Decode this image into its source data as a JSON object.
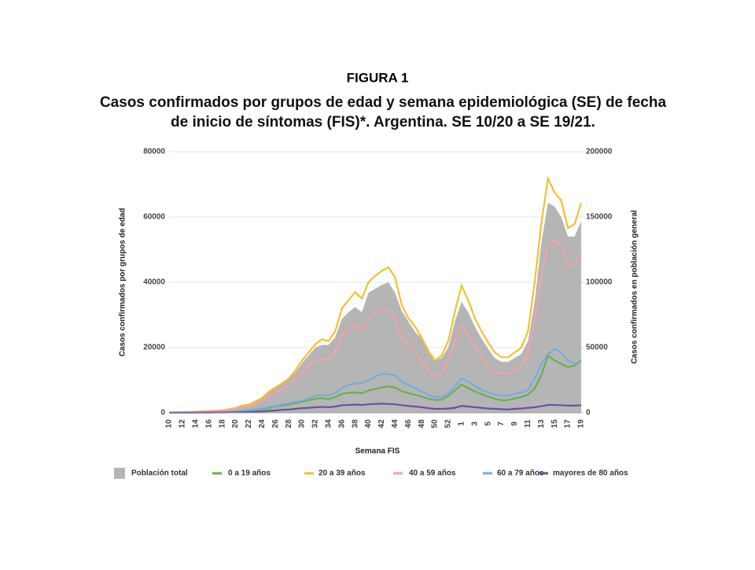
{
  "figure_label": "FIGURA 1",
  "chart_data": {
    "type": "area-line",
    "title": "Casos confirmados por grupos de edad y semana epidemiológica (SE) de fecha de inicio de síntomas (FIS)*. Argentina. SE 10/20 a SE 19/21.",
    "x_label": "Semana FIS",
    "y_label": "Casos confirmados por grupos de edad",
    "y2_label": "Casos confirmados en población general",
    "categories": [
      "10",
      null,
      "12",
      null,
      "14",
      null,
      "16",
      null,
      "18",
      null,
      "20",
      null,
      "22",
      null,
      "24",
      null,
      "26",
      null,
      "28",
      null,
      "30",
      null,
      "32",
      null,
      "34",
      null,
      "36",
      null,
      "38",
      null,
      "40",
      null,
      "42",
      null,
      "44",
      null,
      "46",
      null,
      "48",
      null,
      "50",
      null,
      "52",
      null,
      "1",
      null,
      "3",
      null,
      "5",
      null,
      "7",
      null,
      "9",
      null,
      "11",
      null,
      "13",
      null,
      "15",
      null,
      "17",
      null,
      "19"
    ],
    "ylim": [
      0,
      80000
    ],
    "yticks": [
      0,
      20000,
      40000,
      60000,
      80000
    ],
    "y2lim": [
      0,
      200000
    ],
    "y2ticks": [
      0,
      50000,
      100000,
      150000,
      200000
    ],
    "grid": true,
    "series": [
      {
        "name": "Población total",
        "color": "#b5b5b5",
        "axis": "y2",
        "kind": "area",
        "values": [
          200,
          300,
          400,
          600,
          900,
          1200,
          1500,
          1800,
          2300,
          3000,
          4000,
          5500,
          6500,
          8500,
          11000,
          16000,
          19000,
          22000,
          26000,
          31000,
          38000,
          44000,
          50000,
          52000,
          52000,
          58000,
          72000,
          77000,
          81000,
          77000,
          92000,
          95000,
          98000,
          100000,
          92000,
          78000,
          70000,
          62000,
          57000,
          46000,
          40000,
          42000,
          50000,
          70000,
          85000,
          77000,
          66000,
          57000,
          49000,
          42000,
          39000,
          39000,
          42000,
          45000,
          55000,
          85000,
          130000,
          161000,
          158000,
          150000,
          135000,
          135000,
          147000
        ]
      },
      {
        "name": "0 a 19 años",
        "color": "#6ab04c",
        "values": [
          20,
          30,
          40,
          50,
          70,
          90,
          110,
          130,
          160,
          200,
          300,
          450,
          600,
          800,
          1100,
          1500,
          1900,
          2200,
          2500,
          2900,
          3400,
          3800,
          4300,
          4500,
          4200,
          4800,
          5800,
          6100,
          6200,
          6000,
          6800,
          7300,
          7800,
          8100,
          7700,
          6600,
          6000,
          5500,
          5000,
          4300,
          3900,
          4000,
          5200,
          6800,
          8600,
          7600,
          6500,
          5700,
          5000,
          4300,
          3800,
          3900,
          4400,
          4800,
          5500,
          7500,
          11500,
          17500,
          16000,
          15000,
          14000,
          14500,
          16000
        ]
      },
      {
        "name": "20 a 39 años",
        "color": "#f2c12e",
        "values": [
          100,
          150,
          200,
          250,
          350,
          450,
          550,
          650,
          800,
          1100,
          1500,
          2200,
          2500,
          3500,
          4500,
          6500,
          7800,
          9000,
          10500,
          13000,
          16000,
          18500,
          21000,
          22500,
          22000,
          25000,
          32000,
          34500,
          37000,
          35000,
          40000,
          42000,
          43500,
          44600,
          41500,
          33000,
          29000,
          26500,
          23000,
          19000,
          16000,
          17500,
          22000,
          31000,
          39000,
          34500,
          29000,
          25000,
          21500,
          18500,
          17000,
          17000,
          18500,
          20000,
          25000,
          40000,
          58000,
          71800,
          67500,
          65000,
          56600,
          57800,
          64300
        ]
      },
      {
        "name": "40 a 59 años",
        "color": "#f4a3a8",
        "values": [
          80,
          120,
          160,
          200,
          280,
          350,
          450,
          550,
          650,
          900,
          1200,
          1700,
          2000,
          2800,
          3600,
          5200,
          6200,
          7200,
          8500,
          10500,
          12500,
          14500,
          16000,
          16500,
          16000,
          19000,
          24000,
          26000,
          27000,
          25500,
          29000,
          31000,
          32000,
          31500,
          29000,
          23000,
          20500,
          18500,
          16000,
          13000,
          11000,
          12000,
          16000,
          22000,
          27000,
          24000,
          20000,
          17000,
          14500,
          12500,
          12000,
          12000,
          13000,
          14000,
          18000,
          29000,
          42000,
          51000,
          53000,
          51000,
          45000,
          45500,
          49000
        ]
      },
      {
        "name": "60 a 79 años",
        "color": "#74aee0",
        "values": [
          30,
          40,
          60,
          80,
          100,
          130,
          160,
          200,
          250,
          300,
          400,
          600,
          800,
          1000,
          1300,
          1800,
          2100,
          2500,
          2900,
          3300,
          3700,
          4500,
          5200,
          5500,
          5300,
          6000,
          7500,
          8500,
          9000,
          9200,
          10000,
          11000,
          12000,
          11800,
          11500,
          9500,
          8500,
          7500,
          6500,
          5500,
          4800,
          4800,
          6000,
          8000,
          10500,
          9500,
          8200,
          7000,
          6200,
          5600,
          5300,
          5200,
          5800,
          6200,
          7000,
          10500,
          15000,
          18000,
          19500,
          18500,
          16000,
          15000,
          16000
        ]
      },
      {
        "name": "mayores de 80 años",
        "color": "#6a4fa3",
        "values": [
          10,
          15,
          20,
          30,
          40,
          50,
          60,
          70,
          80,
          100,
          150,
          200,
          250,
          300,
          400,
          600,
          700,
          900,
          1000,
          1200,
          1400,
          1500,
          1700,
          1800,
          1700,
          1900,
          2300,
          2400,
          2500,
          2400,
          2600,
          2700,
          2800,
          2700,
          2600,
          2300,
          2100,
          1900,
          1700,
          1400,
          1200,
          1200,
          1300,
          1500,
          2100,
          1900,
          1700,
          1500,
          1300,
          1200,
          1100,
          1000,
          1200,
          1300,
          1500,
          1700,
          2000,
          2400,
          2400,
          2300,
          2200,
          2200,
          2300
        ]
      }
    ]
  }
}
